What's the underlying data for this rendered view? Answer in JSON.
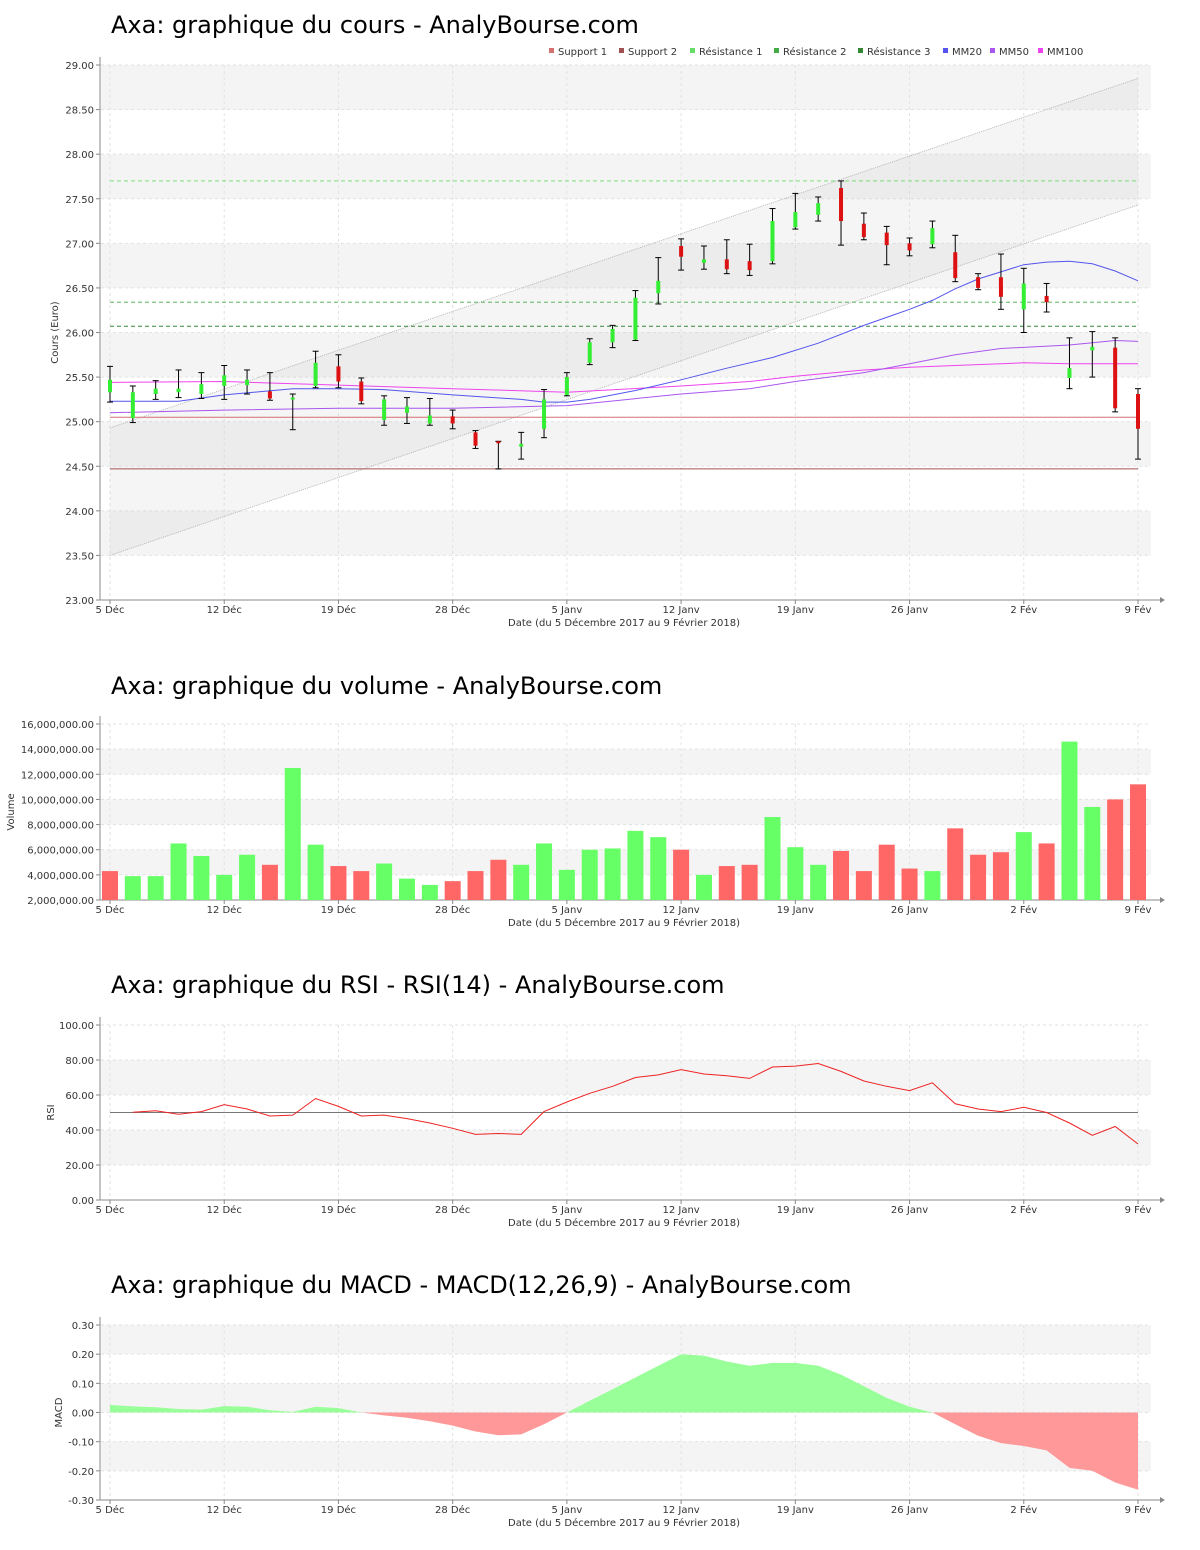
{
  "colors": {
    "up": "#33ee33",
    "down": "#dd1111",
    "vol_up": "#66ff66",
    "vol_down": "#ff6666",
    "support1": "#d47070",
    "support2": "#a05050",
    "res1": "#66dd66",
    "res2": "#44aa44",
    "res3": "#338833",
    "mm20": "#5555ee",
    "mm50": "#aa55ee",
    "mm100": "#ee44ee",
    "rsi": "#ee2222",
    "macd_pos": "#99ff99",
    "macd_neg": "#ff9999"
  },
  "titles": {
    "price": "Axa: graphique du cours - AnalyBourse.com",
    "volume": "Axa: graphique du volume - AnalyBourse.com",
    "rsi": "Axa: graphique du RSI - RSI(14) - AnalyBourse.com",
    "macd": "Axa: graphique du MACD - MACD(12,26,9) - AnalyBourse.com"
  },
  "xaxis": {
    "label": "Date (du 5 Décembre 2017 au 9 Février 2018)",
    "ticks": [
      {
        "day": 0,
        "label": "5 Déc"
      },
      {
        "day": 5,
        "label": "12 Déc"
      },
      {
        "day": 10,
        "label": "19 Déc"
      },
      {
        "day": 15,
        "label": "28 Déc"
      },
      {
        "day": 20,
        "label": "5 Janv"
      },
      {
        "day": 25,
        "label": "12 Janv"
      },
      {
        "day": 30,
        "label": "19 Janv"
      },
      {
        "day": 35,
        "label": "26 Janv"
      },
      {
        "day": 40,
        "label": "2 Fév"
      },
      {
        "day": 45,
        "label": "9 Fév"
      }
    ]
  },
  "legend": [
    "Support 1",
    "Support 2",
    "Résistance 1",
    "Résistance 2",
    "Résistance 3",
    "MM20",
    "MM50",
    "MM100"
  ],
  "chart_data": [
    {
      "type": "candlestick",
      "title": "Axa: graphique du cours - AnalyBourse.com",
      "ylabel": "Cours (Euro)",
      "xlabel": "Date (du 5 Décembre 2017 au 9 Février 2018)",
      "ylim": [
        23.0,
        29.0
      ],
      "yticks": [
        "23.00",
        "23.50",
        "24.00",
        "24.50",
        "25.00",
        "25.50",
        "26.00",
        "26.50",
        "27.00",
        "27.50",
        "28.00",
        "28.50",
        "29.00"
      ],
      "candles": [
        {
          "o": 25.33,
          "h": 25.62,
          "l": 25.22,
          "c": 25.47
        },
        {
          "o": 25.04,
          "h": 25.4,
          "l": 24.99,
          "c": 25.33
        },
        {
          "o": 25.31,
          "h": 25.46,
          "l": 25.25,
          "c": 25.37
        },
        {
          "o": 25.33,
          "h": 25.58,
          "l": 25.27,
          "c": 25.37
        },
        {
          "o": 25.31,
          "h": 25.55,
          "l": 25.26,
          "c": 25.42
        },
        {
          "o": 25.4,
          "h": 25.63,
          "l": 25.25,
          "c": 25.52
        },
        {
          "o": 25.41,
          "h": 25.58,
          "l": 25.31,
          "c": 25.47
        },
        {
          "o": 25.34,
          "h": 25.55,
          "l": 25.24,
          "c": 25.26
        },
        {
          "o": 25.25,
          "h": 25.31,
          "l": 24.91,
          "c": 25.27
        },
        {
          "o": 25.4,
          "h": 25.79,
          "l": 25.38,
          "c": 25.66
        },
        {
          "o": 25.62,
          "h": 25.75,
          "l": 25.38,
          "c": 25.45
        },
        {
          "o": 25.45,
          "h": 25.49,
          "l": 25.2,
          "c": 25.23
        },
        {
          "o": 25.02,
          "h": 25.29,
          "l": 24.96,
          "c": 25.25
        },
        {
          "o": 25.1,
          "h": 25.27,
          "l": 24.98,
          "c": 25.17
        },
        {
          "o": 24.98,
          "h": 25.26,
          "l": 24.96,
          "c": 25.07
        },
        {
          "o": 25.06,
          "h": 25.13,
          "l": 24.92,
          "c": 24.98
        },
        {
          "o": 24.88,
          "h": 24.9,
          "l": 24.7,
          "c": 24.73
        },
        {
          "o": 24.78,
          "h": 24.78,
          "l": 24.47,
          "c": 24.76
        },
        {
          "o": 24.72,
          "h": 24.88,
          "l": 24.58,
          "c": 24.75
        },
        {
          "o": 24.92,
          "h": 25.36,
          "l": 24.82,
          "c": 25.25
        },
        {
          "o": 25.3,
          "h": 25.55,
          "l": 25.29,
          "c": 25.5
        },
        {
          "o": 25.66,
          "h": 25.93,
          "l": 25.64,
          "c": 25.89
        },
        {
          "o": 25.89,
          "h": 26.08,
          "l": 25.83,
          "c": 26.04
        },
        {
          "o": 25.92,
          "h": 26.47,
          "l": 25.91,
          "c": 26.39
        },
        {
          "o": 26.44,
          "h": 26.84,
          "l": 26.32,
          "c": 26.58
        },
        {
          "o": 26.97,
          "h": 27.05,
          "l": 26.7,
          "c": 26.85
        },
        {
          "o": 26.78,
          "h": 26.97,
          "l": 26.71,
          "c": 26.82
        },
        {
          "o": 26.82,
          "h": 27.04,
          "l": 26.66,
          "c": 26.71
        },
        {
          "o": 26.8,
          "h": 26.99,
          "l": 26.64,
          "c": 26.7
        },
        {
          "o": 26.8,
          "h": 27.39,
          "l": 26.77,
          "c": 27.25
        },
        {
          "o": 27.18,
          "h": 27.56,
          "l": 27.16,
          "c": 27.35
        },
        {
          "o": 27.32,
          "h": 27.52,
          "l": 27.25,
          "c": 27.45
        },
        {
          "o": 27.62,
          "h": 27.7,
          "l": 26.98,
          "c": 27.25
        },
        {
          "o": 27.22,
          "h": 27.34,
          "l": 27.04,
          "c": 27.07
        },
        {
          "o": 27.12,
          "h": 27.19,
          "l": 26.76,
          "c": 26.98
        },
        {
          "o": 27.0,
          "h": 27.06,
          "l": 26.86,
          "c": 26.92
        },
        {
          "o": 26.99,
          "h": 27.25,
          "l": 26.95,
          "c": 27.17
        },
        {
          "o": 26.9,
          "h": 27.09,
          "l": 26.57,
          "c": 26.61
        },
        {
          "o": 26.62,
          "h": 26.66,
          "l": 26.48,
          "c": 26.5
        },
        {
          "o": 26.62,
          "h": 26.88,
          "l": 26.26,
          "c": 26.4
        },
        {
          "o": 26.26,
          "h": 26.72,
          "l": 26.0,
          "c": 26.55
        },
        {
          "o": 26.41,
          "h": 26.55,
          "l": 26.23,
          "c": 26.34
        },
        {
          "o": 25.49,
          "h": 25.94,
          "l": 25.37,
          "c": 25.6
        },
        {
          "o": 25.8,
          "h": 26.01,
          "l": 25.5,
          "c": 25.84
        },
        {
          "o": 25.83,
          "h": 25.94,
          "l": 25.11,
          "c": 25.15
        },
        {
          "o": 25.31,
          "h": 25.37,
          "l": 24.58,
          "c": 24.92
        }
      ],
      "support1": 25.05,
      "support2": 24.47,
      "resistance": [
        27.7,
        26.34,
        26.07
      ],
      "channel_upper": [
        [
          0,
          24.93
        ],
        [
          45,
          28.85
        ]
      ],
      "channel_lower": [
        [
          0,
          23.5
        ],
        [
          45,
          27.43
        ]
      ],
      "mm20": [
        [
          0,
          25.23
        ],
        [
          3,
          25.23
        ],
        [
          5,
          25.3
        ],
        [
          8,
          25.37
        ],
        [
          10,
          25.37
        ],
        [
          12,
          25.36
        ],
        [
          15,
          25.3
        ],
        [
          18,
          25.25
        ],
        [
          19,
          25.22
        ],
        [
          20,
          25.22
        ],
        [
          21,
          25.25
        ],
        [
          23,
          25.35
        ],
        [
          25,
          25.47
        ],
        [
          27,
          25.6
        ],
        [
          29,
          25.72
        ],
        [
          31,
          25.88
        ],
        [
          33,
          26.08
        ],
        [
          35,
          26.26
        ],
        [
          36,
          26.36
        ],
        [
          37,
          26.49
        ],
        [
          38,
          26.6
        ],
        [
          40,
          26.76
        ],
        [
          41,
          26.79
        ],
        [
          42,
          26.8
        ],
        [
          43,
          26.77
        ],
        [
          44,
          26.69
        ],
        [
          45,
          26.58
        ]
      ],
      "mm50": [
        [
          0,
          25.1
        ],
        [
          5,
          25.13
        ],
        [
          10,
          25.15
        ],
        [
          15,
          25.15
        ],
        [
          20,
          25.18
        ],
        [
          25,
          25.31
        ],
        [
          28,
          25.37
        ],
        [
          30,
          25.45
        ],
        [
          33,
          25.55
        ],
        [
          35,
          25.65
        ],
        [
          37,
          25.75
        ],
        [
          39,
          25.82
        ],
        [
          42,
          25.86
        ],
        [
          44,
          25.91
        ],
        [
          45,
          25.9
        ]
      ],
      "mm100": [
        [
          0,
          25.44
        ],
        [
          5,
          25.45
        ],
        [
          10,
          25.41
        ],
        [
          15,
          25.37
        ],
        [
          20,
          25.33
        ],
        [
          25,
          25.4
        ],
        [
          28,
          25.45
        ],
        [
          30,
          25.51
        ],
        [
          33,
          25.58
        ],
        [
          35,
          25.61
        ],
        [
          37,
          25.63
        ],
        [
          40,
          25.66
        ],
        [
          42,
          25.65
        ],
        [
          45,
          25.65
        ]
      ]
    },
    {
      "type": "bar",
      "title": "Axa: graphique du volume - AnalyBourse.com",
      "ylabel": "Volume",
      "xlabel": "Date (du 5 Décembre 2017 au 9 Février 2018)",
      "ylim": [
        2000000,
        16000000
      ],
      "yticks": [
        "2,000,000.00",
        "4,000,000.00",
        "6,000,000.00",
        "8,000,000.00",
        "10,000,000.00",
        "12,000,000.00",
        "14,000,000.00",
        "16,000,000.00"
      ],
      "values": [
        4300000,
        3900000,
        3900000,
        6500000,
        5500000,
        4000000,
        5600000,
        4800000,
        12500000,
        6400000,
        4700000,
        4300000,
        4900000,
        3700000,
        3200000,
        3500000,
        4300000,
        5200000,
        4800000,
        6500000,
        4400000,
        6000000,
        6100000,
        7500000,
        7000000,
        6000000,
        4000000,
        4700000,
        4800000,
        8600000,
        6200000,
        4800000,
        5900000,
        4300000,
        6400000,
        4500000,
        4300000,
        7700000,
        5600000,
        5800000,
        7400000,
        6500000,
        14600000,
        9400000,
        10000000,
        11200000
      ],
      "up": [
        false,
        true,
        true,
        true,
        true,
        true,
        true,
        false,
        true,
        true,
        false,
        false,
        true,
        true,
        true,
        false,
        false,
        false,
        true,
        true,
        true,
        true,
        true,
        true,
        true,
        false,
        true,
        false,
        false,
        true,
        true,
        true,
        false,
        false,
        false,
        false,
        true,
        false,
        false,
        false,
        true,
        false,
        true,
        true,
        false,
        false
      ]
    },
    {
      "type": "line",
      "title": "Axa: graphique du RSI - RSI(14) - AnalyBourse.com",
      "ylabel": "RSI",
      "xlabel": "Date (du 5 Décembre 2017 au 9 Février 2018)",
      "ylim": [
        0,
        100
      ],
      "yticks": [
        "0.00",
        "20.00",
        "40.00",
        "60.00",
        "80.00",
        "100.00"
      ],
      "reference": 50,
      "values": [
        [
          1,
          50.2
        ],
        [
          2,
          51.0
        ],
        [
          3,
          49.0
        ],
        [
          4,
          50.5
        ],
        [
          5,
          54.5
        ],
        [
          6,
          52.0
        ],
        [
          7,
          48.0
        ],
        [
          8,
          48.5
        ],
        [
          9,
          58.0
        ],
        [
          10,
          53.5
        ],
        [
          11,
          48.0
        ],
        [
          12,
          48.5
        ],
        [
          13,
          46.5
        ],
        [
          14,
          44.0
        ],
        [
          15,
          41.0
        ],
        [
          16,
          37.5
        ],
        [
          17,
          38.0
        ],
        [
          18,
          37.5
        ],
        [
          19,
          50.5
        ],
        [
          20,
          56.0
        ],
        [
          21,
          61.0
        ],
        [
          22,
          65.0
        ],
        [
          23,
          70.0
        ],
        [
          24,
          71.5
        ],
        [
          25,
          74.5
        ],
        [
          26,
          72.0
        ],
        [
          27,
          71.0
        ],
        [
          28,
          69.5
        ],
        [
          29,
          76.0
        ],
        [
          30,
          76.5
        ],
        [
          31,
          78.0
        ],
        [
          32,
          73.5
        ],
        [
          33,
          68.0
        ],
        [
          34,
          65.0
        ],
        [
          35,
          62.5
        ],
        [
          36,
          67.0
        ],
        [
          37,
          55.0
        ],
        [
          38,
          52.0
        ],
        [
          39,
          50.5
        ],
        [
          40,
          53.0
        ],
        [
          41,
          50.0
        ],
        [
          42,
          44.0
        ],
        [
          43,
          37.0
        ],
        [
          44,
          42.0
        ],
        [
          45,
          32.0
        ]
      ]
    },
    {
      "type": "area",
      "title": "Axa: graphique du MACD - MACD(12,26,9) - AnalyBourse.com",
      "ylabel": "MACD",
      "xlabel": "Date (du 5 Décembre 2017 au 9 Février 2018)",
      "ylim": [
        -0.3,
        0.3
      ],
      "yticks": [
        "-0.30",
        "-0.20",
        "-0.10",
        "0.00",
        "0.10",
        "0.20",
        "0.30"
      ],
      "values": [
        [
          0,
          0.026
        ],
        [
          1,
          0.021
        ],
        [
          2,
          0.018
        ],
        [
          3,
          0.012
        ],
        [
          4,
          0.01
        ],
        [
          5,
          0.022
        ],
        [
          6,
          0.02
        ],
        [
          7,
          0.008
        ],
        [
          8,
          0.002
        ],
        [
          9,
          0.02
        ],
        [
          10,
          0.015
        ],
        [
          11,
          0.0
        ],
        [
          12,
          -0.01
        ],
        [
          13,
          -0.018
        ],
        [
          14,
          -0.03
        ],
        [
          15,
          -0.045
        ],
        [
          16,
          -0.065
        ],
        [
          17,
          -0.078
        ],
        [
          18,
          -0.075
        ],
        [
          19,
          -0.04
        ],
        [
          20,
          0.0
        ],
        [
          21,
          0.04
        ],
        [
          22,
          0.08
        ],
        [
          23,
          0.12
        ],
        [
          24,
          0.16
        ],
        [
          25,
          0.2
        ],
        [
          26,
          0.195
        ],
        [
          27,
          0.175
        ],
        [
          28,
          0.16
        ],
        [
          29,
          0.17
        ],
        [
          30,
          0.17
        ],
        [
          31,
          0.16
        ],
        [
          32,
          0.13
        ],
        [
          33,
          0.09
        ],
        [
          34,
          0.05
        ],
        [
          35,
          0.02
        ],
        [
          36,
          0.0
        ],
        [
          37,
          -0.04
        ],
        [
          38,
          -0.08
        ],
        [
          39,
          -0.105
        ],
        [
          40,
          -0.115
        ],
        [
          41,
          -0.13
        ],
        [
          42,
          -0.19
        ],
        [
          43,
          -0.2
        ],
        [
          44,
          -0.24
        ],
        [
          45,
          -0.265
        ]
      ]
    }
  ]
}
